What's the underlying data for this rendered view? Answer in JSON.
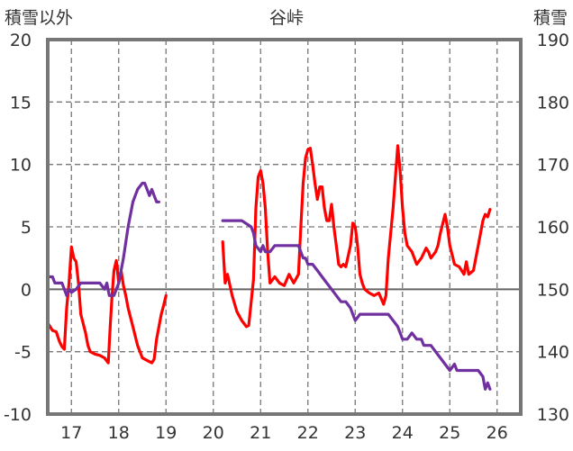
{
  "chart_data": {
    "type": "line",
    "title": "谷峠",
    "left_axis": {
      "label": "積雪以外",
      "ylim": [
        -10,
        20
      ],
      "ticks": [
        "20",
        "15",
        "10",
        "5",
        "0",
        "-5",
        "-10"
      ]
    },
    "right_axis": {
      "label": "積雪",
      "ylim": [
        130,
        190
      ],
      "ticks": [
        "190",
        "180",
        "170",
        "160",
        "150",
        "140",
        "130"
      ]
    },
    "x_ticks": [
      "17",
      "18",
      "19",
      "20",
      "21",
      "22",
      "23",
      "24",
      "25",
      "26"
    ],
    "xlim": [
      16.5,
      26.5
    ],
    "grid": true,
    "series": [
      {
        "axis": "left",
        "color": "#ff0000",
        "segments": [
          [
            [
              16.5,
              -2.7
            ],
            [
              16.6,
              -3.3
            ],
            [
              16.68,
              -3.4
            ],
            [
              16.75,
              -4.2
            ],
            [
              16.8,
              -4.6
            ],
            [
              16.85,
              -4.8
            ],
            [
              16.9,
              -1.5
            ],
            [
              16.95,
              0.5
            ],
            [
              17.0,
              3.4
            ],
            [
              17.05,
              2.5
            ],
            [
              17.1,
              2.2
            ],
            [
              17.15,
              0.5
            ],
            [
              17.2,
              -2.0
            ],
            [
              17.3,
              -3.5
            ],
            [
              17.35,
              -4.5
            ],
            [
              17.4,
              -5.0
            ],
            [
              17.5,
              -5.2
            ],
            [
              17.6,
              -5.3
            ],
            [
              17.7,
              -5.5
            ],
            [
              17.78,
              -5.9
            ],
            [
              17.82,
              -3.0
            ],
            [
              17.86,
              -0.5
            ],
            [
              17.9,
              1.5
            ],
            [
              17.95,
              2.3
            ],
            [
              18.0,
              0.5
            ],
            [
              18.05,
              1.5
            ],
            [
              18.1,
              0.3
            ],
            [
              18.15,
              -0.5
            ],
            [
              18.2,
              -1.5
            ],
            [
              18.3,
              -3.0
            ],
            [
              18.4,
              -4.5
            ],
            [
              18.5,
              -5.5
            ],
            [
              18.6,
              -5.7
            ],
            [
              18.7,
              -5.9
            ],
            [
              18.75,
              -5.6
            ],
            [
              18.8,
              -4.0
            ],
            [
              18.85,
              -3.0
            ],
            [
              18.9,
              -2.0
            ],
            [
              18.95,
              -1.3
            ],
            [
              19.0,
              -0.5
            ]
          ],
          [
            [
              20.2,
              3.8
            ],
            [
              20.25,
              0.5
            ],
            [
              20.3,
              1.2
            ],
            [
              20.4,
              -0.5
            ],
            [
              20.5,
              -1.8
            ],
            [
              20.6,
              -2.5
            ],
            [
              20.7,
              -3.0
            ],
            [
              20.75,
              -2.9
            ],
            [
              20.85,
              0.8
            ],
            [
              20.9,
              6.5
            ],
            [
              20.95,
              9.0
            ],
            [
              21.0,
              9.5
            ],
            [
              21.05,
              8.5
            ],
            [
              21.1,
              6.5
            ],
            [
              21.15,
              3.0
            ],
            [
              21.2,
              0.5
            ],
            [
              21.3,
              1.0
            ],
            [
              21.4,
              0.5
            ],
            [
              21.5,
              0.3
            ],
            [
              21.6,
              1.2
            ],
            [
              21.7,
              0.5
            ],
            [
              21.8,
              1.2
            ],
            [
              21.85,
              5.0
            ],
            [
              21.9,
              8.5
            ],
            [
              21.95,
              10.5
            ],
            [
              22.0,
              11.2
            ],
            [
              22.05,
              11.3
            ],
            [
              22.1,
              10.0
            ],
            [
              22.15,
              8.5
            ],
            [
              22.2,
              7.2
            ],
            [
              22.25,
              8.2
            ],
            [
              22.3,
              8.2
            ],
            [
              22.35,
              6.5
            ],
            [
              22.4,
              5.5
            ],
            [
              22.45,
              5.5
            ],
            [
              22.5,
              6.8
            ],
            [
              22.55,
              5.0
            ],
            [
              22.6,
              3.5
            ],
            [
              22.65,
              2.0
            ],
            [
              22.7,
              1.8
            ],
            [
              22.75,
              2.0
            ],
            [
              22.8,
              1.8
            ],
            [
              22.9,
              3.5
            ],
            [
              22.95,
              5.3
            ],
            [
              23.0,
              5.0
            ],
            [
              23.05,
              3.5
            ],
            [
              23.1,
              1.2
            ],
            [
              23.15,
              0.5
            ],
            [
              23.2,
              0.0
            ],
            [
              23.3,
              -0.3
            ],
            [
              23.4,
              -0.5
            ],
            [
              23.5,
              -0.3
            ],
            [
              23.6,
              -1.2
            ],
            [
              23.65,
              -0.5
            ],
            [
              23.7,
              2.5
            ],
            [
              23.8,
              6.5
            ],
            [
              23.85,
              9.0
            ],
            [
              23.9,
              11.5
            ],
            [
              23.95,
              9.5
            ],
            [
              24.0,
              6.5
            ],
            [
              24.05,
              4.5
            ],
            [
              24.1,
              3.5
            ],
            [
              24.2,
              3.0
            ],
            [
              24.3,
              2.0
            ],
            [
              24.4,
              2.5
            ],
            [
              24.5,
              3.3
            ],
            [
              24.55,
              3.0
            ],
            [
              24.6,
              2.5
            ],
            [
              24.7,
              3.0
            ],
            [
              24.75,
              3.5
            ],
            [
              24.8,
              4.5
            ],
            [
              24.9,
              6.0
            ],
            [
              24.95,
              5.0
            ],
            [
              25.0,
              3.5
            ],
            [
              25.1,
              2.0
            ],
            [
              25.2,
              1.8
            ],
            [
              25.3,
              1.2
            ],
            [
              25.35,
              2.2
            ],
            [
              25.4,
              1.2
            ],
            [
              25.5,
              1.5
            ],
            [
              25.6,
              3.5
            ],
            [
              25.7,
              5.5
            ],
            [
              25.75,
              6.0
            ],
            [
              25.8,
              5.8
            ],
            [
              25.85,
              6.4
            ]
          ]
        ]
      },
      {
        "axis": "right",
        "color": "#7030a0",
        "segments": [
          [
            [
              16.5,
              152
            ],
            [
              16.6,
              152
            ],
            [
              16.65,
              151
            ],
            [
              16.8,
              151
            ],
            [
              16.85,
              150
            ],
            [
              16.9,
              149
            ],
            [
              16.95,
              150
            ],
            [
              17.0,
              149.5
            ],
            [
              17.1,
              150
            ],
            [
              17.2,
              151
            ],
            [
              17.6,
              151
            ],
            [
              17.7,
              150
            ],
            [
              17.75,
              151
            ],
            [
              17.8,
              149
            ],
            [
              17.9,
              149
            ],
            [
              18.0,
              151
            ],
            [
              18.1,
              155
            ],
            [
              18.2,
              160
            ],
            [
              18.3,
              164
            ],
            [
              18.4,
              166
            ],
            [
              18.5,
              167
            ],
            [
              18.55,
              167
            ],
            [
              18.6,
              166
            ],
            [
              18.65,
              165
            ],
            [
              18.7,
              166
            ],
            [
              18.75,
              165
            ],
            [
              18.8,
              164
            ],
            [
              18.85,
              164
            ]
          ],
          [
            [
              20.2,
              161
            ],
            [
              20.6,
              161
            ],
            [
              20.8,
              160
            ],
            [
              20.85,
              159
            ],
            [
              20.9,
              157
            ],
            [
              21.0,
              156
            ],
            [
              21.05,
              157
            ],
            [
              21.1,
              156
            ],
            [
              21.15,
              156
            ],
            [
              21.2,
              156
            ],
            [
              21.3,
              157
            ],
            [
              21.8,
              157
            ],
            [
              21.85,
              156
            ],
            [
              21.9,
              155
            ],
            [
              21.95,
              155
            ],
            [
              22.0,
              154
            ],
            [
              22.1,
              154
            ],
            [
              22.2,
              153
            ],
            [
              22.3,
              152
            ],
            [
              22.4,
              151
            ],
            [
              22.5,
              150
            ],
            [
              22.6,
              149
            ],
            [
              22.7,
              148
            ],
            [
              22.8,
              148
            ],
            [
              22.9,
              147
            ],
            [
              22.95,
              146
            ],
            [
              23.0,
              145
            ],
            [
              23.1,
              146
            ],
            [
              23.7,
              146
            ],
            [
              23.8,
              145
            ],
            [
              23.9,
              144
            ],
            [
              24.0,
              142
            ],
            [
              24.1,
              142
            ],
            [
              24.2,
              143
            ],
            [
              24.3,
              142
            ],
            [
              24.4,
              142
            ],
            [
              24.45,
              141
            ],
            [
              24.5,
              141
            ],
            [
              24.6,
              141
            ],
            [
              24.7,
              140
            ],
            [
              24.8,
              139
            ],
            [
              24.9,
              138
            ],
            [
              25.0,
              137
            ],
            [
              25.1,
              138
            ],
            [
              25.15,
              137
            ],
            [
              25.2,
              137
            ],
            [
              25.3,
              137
            ],
            [
              25.4,
              137
            ],
            [
              25.5,
              137
            ],
            [
              25.6,
              137
            ],
            [
              25.7,
              136
            ],
            [
              25.75,
              134
            ],
            [
              25.8,
              135
            ],
            [
              25.85,
              134
            ]
          ]
        ]
      }
    ]
  }
}
